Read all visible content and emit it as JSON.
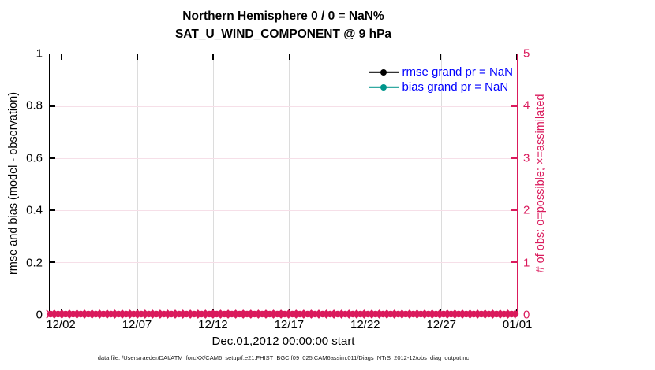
{
  "figure": {
    "title_line1": "Northern Hemisphere 0 / 0 = NaN%",
    "title_line2": "SAT_U_WIND_COMPONENT @ 9 hPa",
    "footer_datafile": "data file: /Users/raeder/DAI/ATM_forcXX/CAM6_setup/f.e21.FHIST_BGC.f09_025.CAM6assim.011/Diags_NTrS_2012-12/obs_diag_output.nc"
  },
  "colors": {
    "axis_black": "#000000",
    "obs_pink": "#da1a5c",
    "grid_gray": "#dcdcdc",
    "grid_pink": "#f6dfe8",
    "legend_text_blue": "#0000ff",
    "bias_teal": "#00968c",
    "background": "#ffffff"
  },
  "legend": {
    "text_color": "#0000ff",
    "items": [
      {
        "label": "rmse grand pr = NaN",
        "color": "#000000"
      },
      {
        "label": "bias grand pr = NaN",
        "color": "#00968c"
      }
    ]
  },
  "chart_data": {
    "type": "line",
    "title": "Northern Hemisphere 0 / 0 = NaN%",
    "subtitle": "SAT_U_WIND_COMPONENT @ 9 hPa",
    "grid": true,
    "legend_position": "top-right-inside",
    "x_axis": {
      "label": "Dec.01,2012 00:00:00 start",
      "tick_labels": [
        "12/02",
        "12/07",
        "12/12",
        "12/17",
        "12/22",
        "12/27",
        "01/01"
      ]
    },
    "left_y_axis": {
      "label": "rmse and bias (model - observation)",
      "range": [
        0,
        1
      ],
      "tick_labels": [
        "0",
        "0.2",
        "0.4",
        "0.6",
        "0.8",
        "1"
      ],
      "color": "#000000"
    },
    "right_y_axis": {
      "label": "# of obs: o=possible; ×=assimilated",
      "range": [
        0,
        5
      ],
      "tick_labels": [
        "0",
        "1",
        "2",
        "3",
        "4",
        "5"
      ],
      "color": "#da1a5c"
    },
    "series": [
      {
        "name": "rmse",
        "legend_label": "rmse grand pr = NaN",
        "color": "#000000",
        "marker": "o-filled",
        "values": [],
        "note_visible_value": "NaN"
      },
      {
        "name": "bias",
        "legend_label": "bias grand pr = NaN",
        "color": "#00968c",
        "marker": "o-filled",
        "values": [],
        "note_visible_value": "NaN"
      },
      {
        "name": "obs_possible",
        "axis": "right",
        "color": "#da1a5c",
        "marker": "o",
        "constant_value": 0
      },
      {
        "name": "obs_assimilated",
        "axis": "right",
        "color": "#da1a5c",
        "marker": "x",
        "constant_value": 0
      }
    ],
    "obs_band": {
      "marker_count": 124,
      "value": 0,
      "color": "#da1a5c",
      "marker_radius": 4.2
    }
  }
}
